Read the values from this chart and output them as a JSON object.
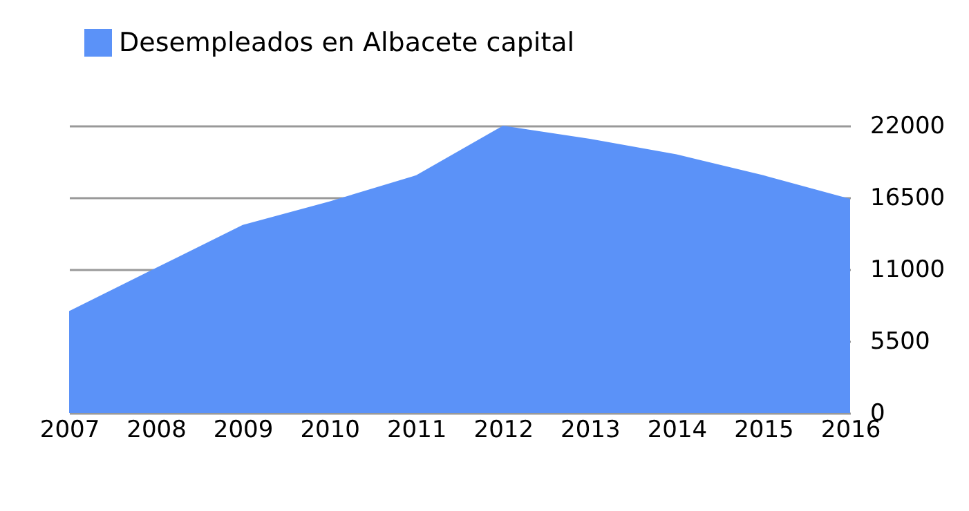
{
  "chart_data": {
    "type": "area",
    "categories": [
      "2007",
      "2008",
      "2009",
      "2010",
      "2011",
      "2012",
      "2013",
      "2014",
      "2015",
      "2016"
    ],
    "series": [
      {
        "name": "Desempleados en Albacete capital",
        "color": "#5b92f8",
        "values": [
          7800,
          11100,
          14400,
          16200,
          18200,
          22000,
          21000,
          19800,
          18200,
          16400
        ]
      }
    ],
    "ylim": [
      0,
      22000
    ],
    "yticks": [
      0,
      5500,
      11000,
      16500,
      22000
    ],
    "grid": "y",
    "legend": "top"
  }
}
